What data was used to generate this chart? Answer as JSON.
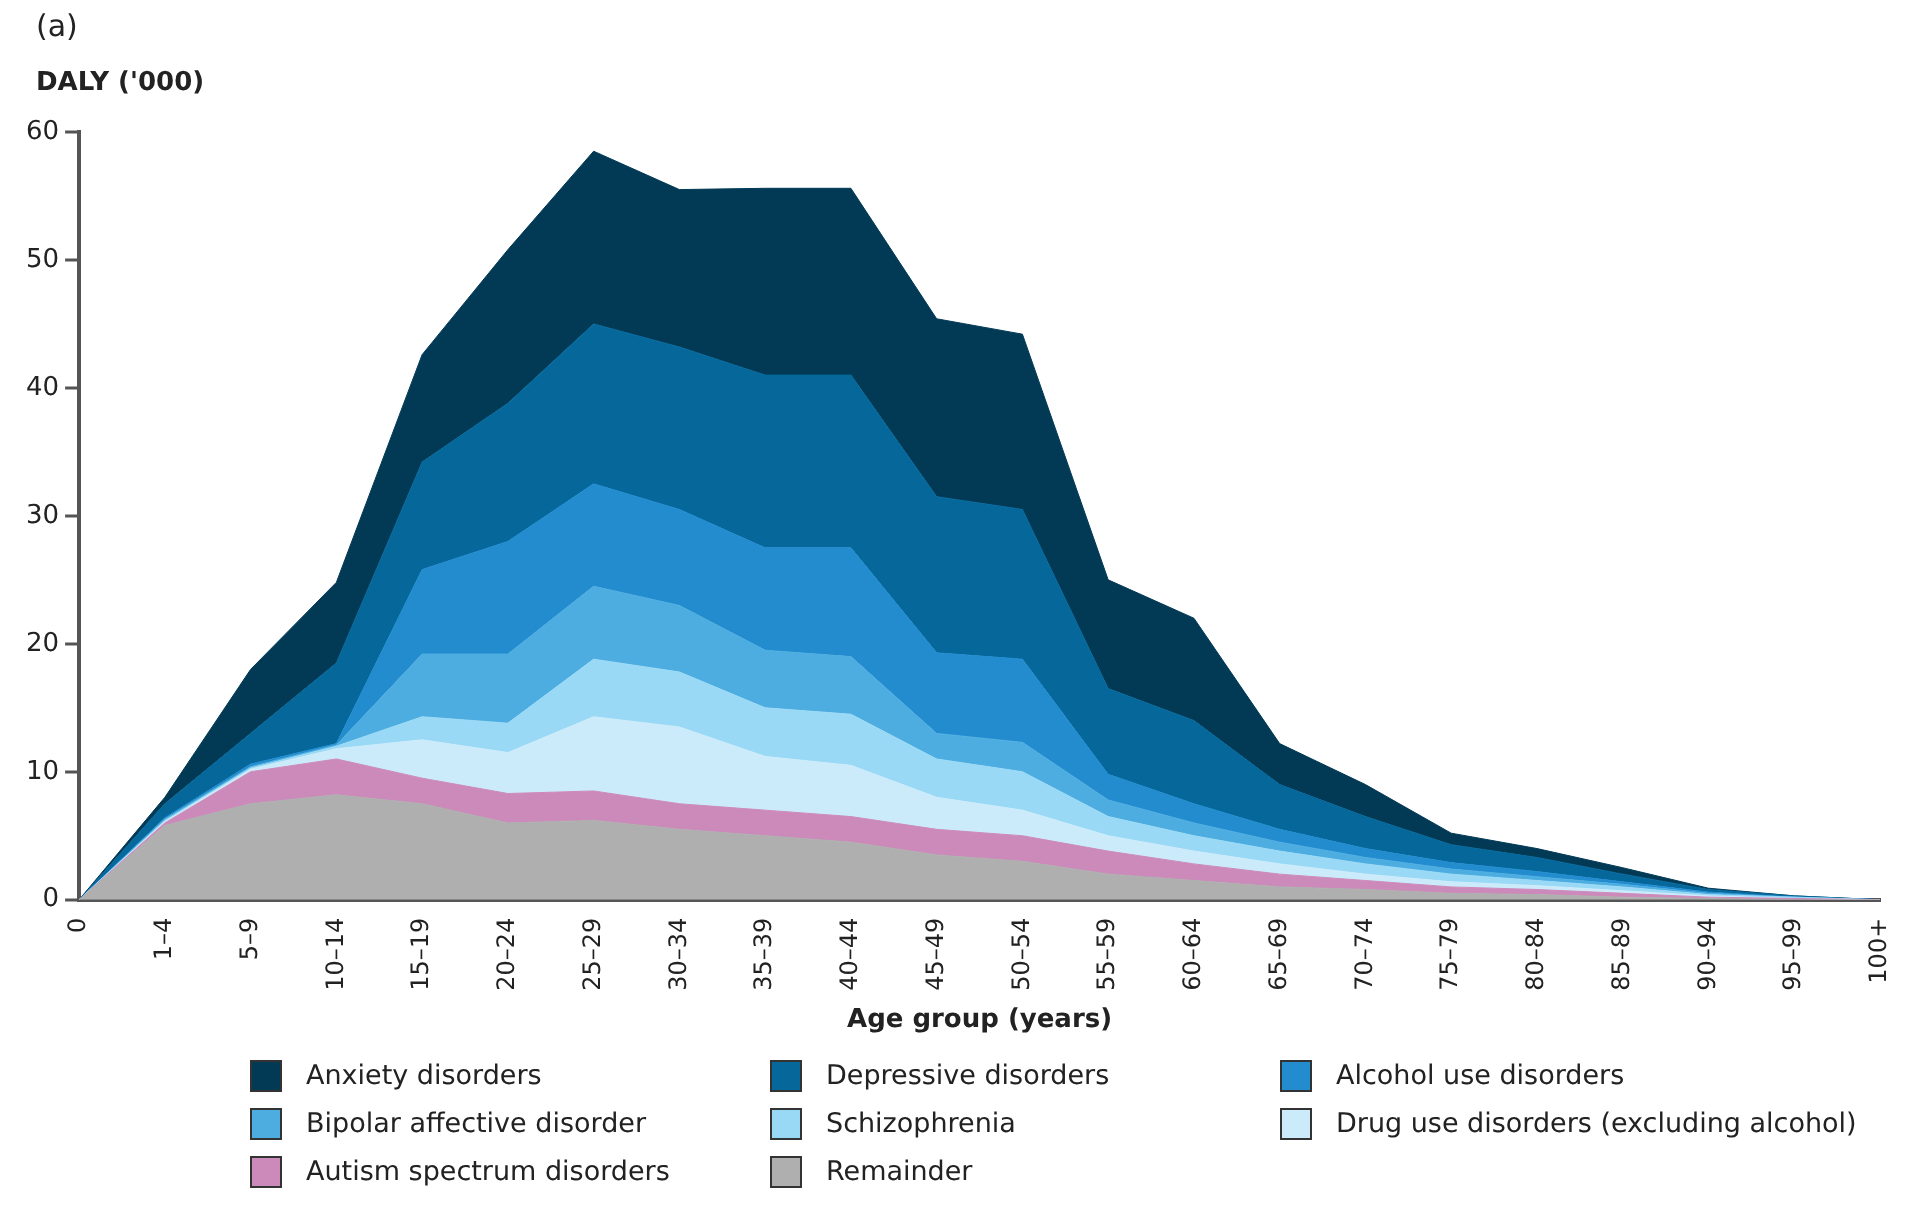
{
  "chart_data": {
    "type": "area",
    "stacked": true,
    "annotations": [
      "(a)"
    ],
    "ylabel": "DALY ('000)",
    "xlabel": "Age group (years)",
    "categories": [
      "0",
      "1–4",
      "5–9",
      "10–14",
      "15–19",
      "20–24",
      "25–29",
      "30–34",
      "35–39",
      "40–44",
      "45–49",
      "50–54",
      "55–59",
      "60–64",
      "65–69",
      "70–74",
      "75–79",
      "80–84",
      "85–89",
      "90–94",
      "95–99",
      "100+"
    ],
    "ylim": [
      0,
      60
    ],
    "yticks": [
      0,
      10,
      20,
      30,
      40,
      50,
      60
    ],
    "grid": false,
    "legend": "bottom",
    "series": [
      {
        "name": "Remainder",
        "color": "#afafaf",
        "values": [
          0,
          5.8,
          7.5,
          8.2,
          7.5,
          6,
          6.2,
          5.5,
          5,
          4.5,
          3.5,
          3,
          2,
          1.5,
          1,
          0.8,
          0.5,
          0.4,
          0.2,
          0.1,
          0,
          0
        ]
      },
      {
        "name": "Autism spectrum disorders",
        "color": "#cc8abb",
        "values": [
          0,
          0.2,
          2.5,
          2.8,
          2,
          2.3,
          2.3,
          2,
          2,
          2,
          2,
          2,
          1.8,
          1.3,
          1,
          0.7,
          0.5,
          0.4,
          0.3,
          0.1,
          0.1,
          0
        ]
      },
      {
        "name": "Drug use disorders (excluding alcohol)",
        "color": "#cbebfb",
        "values": [
          0,
          0.1,
          0.2,
          0.8,
          3,
          3.2,
          5.8,
          6,
          4.2,
          4,
          2.5,
          2,
          1.2,
          1,
          0.8,
          0.5,
          0.4,
          0.3,
          0.2,
          0.1,
          0,
          0
        ]
      },
      {
        "name": "Schizophrenia",
        "color": "#99d9f5",
        "values": [
          0,
          0.1,
          0.1,
          0.2,
          1.8,
          2.3,
          4.5,
          4.3,
          3.8,
          4,
          3,
          3,
          1.5,
          1.2,
          1,
          0.8,
          0.6,
          0.4,
          0.3,
          0.1,
          0.1,
          0
        ]
      },
      {
        "name": "Bipolar affective disorder",
        "color": "#4dade0",
        "values": [
          0,
          0.1,
          0.1,
          0.1,
          4.9,
          5.4,
          5.7,
          5.2,
          4.5,
          4.5,
          2,
          2.3,
          1.3,
          1,
          0.7,
          0.5,
          0.4,
          0.3,
          0.2,
          0.1,
          0,
          0
        ]
      },
      {
        "name": "Alcohol use disorders",
        "color": "#228ccf",
        "values": [
          0,
          0.1,
          0.2,
          0.1,
          6.6,
          8.8,
          8,
          7.5,
          8,
          8.5,
          6.3,
          6.5,
          2,
          1.5,
          1,
          0.7,
          0.5,
          0.4,
          0.2,
          0.1,
          0,
          0
        ]
      },
      {
        "name": "Depressive disorders",
        "color": "#05679a",
        "values": [
          0,
          1.1,
          2.4,
          6.3,
          8.4,
          10.8,
          12.5,
          12.7,
          13.5,
          13.5,
          12.2,
          11.7,
          6.7,
          6.5,
          3.5,
          2.5,
          1.4,
          1.1,
          0.6,
          0.2,
          0.1,
          0
        ]
      },
      {
        "name": "Anxiety disorders",
        "color": "#023a56",
        "values": [
          0,
          0.5,
          5,
          6.3,
          8.4,
          12,
          13.5,
          12.3,
          14.6,
          14.6,
          13.9,
          13.7,
          8.5,
          8,
          3.2,
          2.5,
          0.9,
          0.7,
          0.5,
          0.1,
          0,
          0
        ]
      }
    ]
  }
}
